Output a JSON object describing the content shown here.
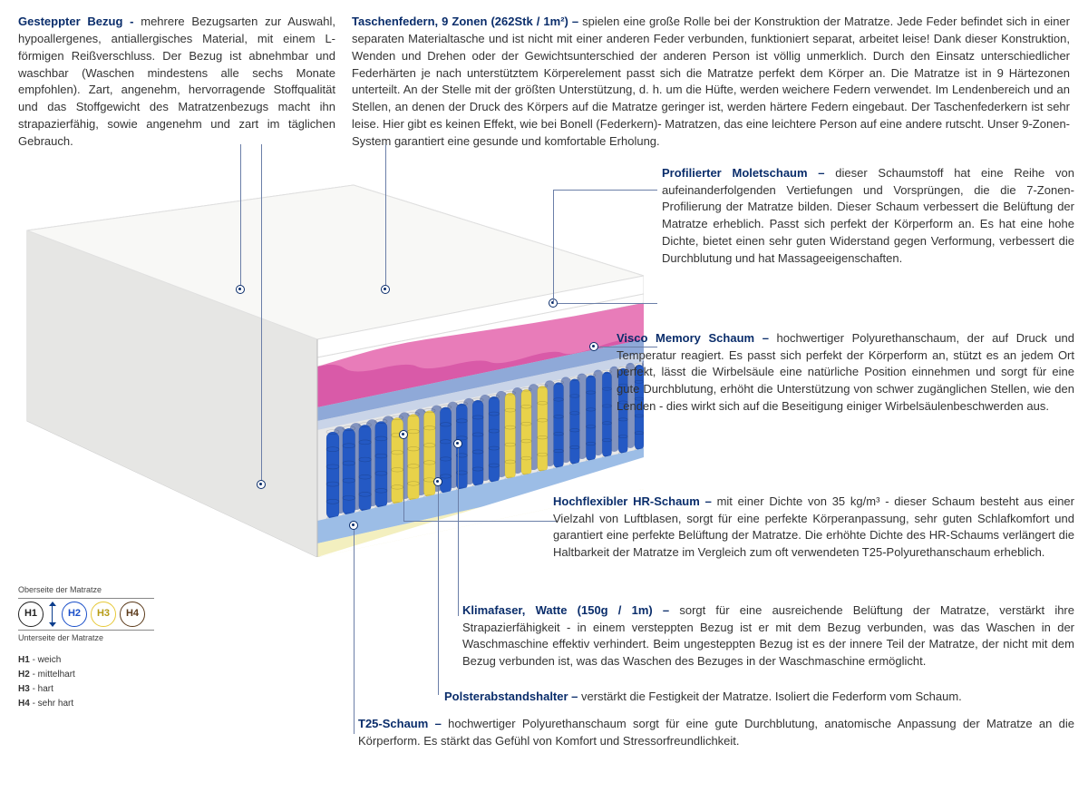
{
  "top": {
    "left": {
      "title": "Gesteppter Bezug - ",
      "body": "mehrere Bezugsarten zur Auswahl, hypoallergenes, antiallergisches Material, mit einem L-förmigen Reißverschluss. Der Bezug ist abnehmbar und waschbar (Waschen mindestens alle sechs Monate empfohlen). Zart, angenehm, hervorragende Stoffqualität und das Stoffgewicht des Matratzenbezugs macht ihn strapazierfähig, sowie angenehm und zart im täglichen Gebrauch."
    },
    "right": {
      "title": "Taschenfedern, 9 Zonen (262Stk / 1m²) – ",
      "body": "spielen eine große Rolle bei der Konstruktion der Matratze. Jede Feder befindet sich in einer separaten Materialtasche und ist nicht mit einer anderen Feder verbunden, funktioniert separat, arbeitet leise! Dank dieser Konstruktion, Wenden und Drehen oder der Gewichtsunterschied der anderen Person ist völlig unmerklich. Durch den Einsatz unterschiedlicher Federhärten je nach unterstütztem Körperelement passt sich die Matratze perfekt dem Körper an. Die Matratze ist in 9 Härtezonen unterteilt. An der Stelle mit der größten Unterstützung, d. h. um die Hüfte, werden weichere Federn verwendet. Im Lendenbereich und an Stellen, an denen der Druck des Körpers auf die Matratze geringer ist, werden härtere Federn eingebaut. Der Taschenfederkern ist sehr leise. Hier gibt es keinen Effekt, wie bei Bonell (Federkern)- Matratzen, das eine leichtere Person auf eine andere rutscht. Unser 9-Zonen-System garantiert eine gesunde und komfortable Erholung."
    }
  },
  "right_blocks": {
    "r1": {
      "title": "Profilierter Moletschaum – ",
      "body": "dieser Schaumstoff hat eine Reihe von aufeinanderfolgenden Vertiefungen und Vorsprüngen, die die 7-Zonen-Profilierung der Matratze bilden. Dieser Schaum verbessert die Belüftung der Matratze erheblich. Passt sich perfekt der Körperform an. Es hat eine hohe Dichte, bietet einen sehr guten Widerstand gegen Verformung, verbessert die Durchblutung und hat Massageeigenschaften."
    },
    "r2": {
      "title": "Visco Memory Schaum – ",
      "body": "hochwertiger Polyurethanschaum, der auf Druck und Temperatur reagiert. Es passt sich perfekt der Körperform an, stützt es an jedem Ort perfekt, lässt die Wirbelsäule eine natürliche Position einnehmen und sorgt für eine gute Durchblutung, erhöht die Unterstützung von schwer zugänglichen Stellen, wie den Lenden - dies wirkt sich auf die Beseitigung einiger Wirbelsäulenbeschwerden aus."
    }
  },
  "bottom_blocks": {
    "b1": {
      "title": "Hochflexibler HR-Schaum – ",
      "body": "mit einer Dichte von 35 kg/m³ - dieser Schaum besteht aus einer Vielzahl von Luftblasen, sorgt für eine perfekte Körperanpassung, sehr guten Schlafkomfort und garantiert eine perfekte Belüftung der Matratze. Die erhöhte Dichte des HR-Schaums verlängert die Haltbarkeit der Matratze im Vergleich zum oft verwendeten T25-Polyurethanschaum erheblich."
    },
    "b2": {
      "title": "Klimafaser, Watte (150g / 1m) – ",
      "body": "sorgt für eine ausreichende Belüftung der Matratze, verstärkt ihre Strapazierfähigkeit - in einem versteppten Bezug ist er mit dem Bezug verbunden, was das Waschen in der Waschmaschine effektiv verhindert. Beim ungesteppten Bezug ist es der innere Teil der Matratze, der nicht mit dem Bezug verbunden ist, was das Waschen des Bezuges in der Waschmaschine ermöglicht."
    },
    "b3": {
      "title": "Polsterabstandshalter – ",
      "body": "verstärkt die Festigkeit der Matratze. Isoliert die Federform vom Schaum."
    },
    "b4": {
      "title": "T25-Schaum – ",
      "body": "hochwertiger Polyurethanschaum sorgt für eine gute Durchblutung, anatomische Anpassung der Matratze an die Körperform. Es stärkt das Gefühl von Komfort und Stressorfreundlichkeit."
    }
  },
  "hardness": {
    "top_label": "Oberseite der Matratze",
    "bottom_label": "Unterseite der Matratze",
    "circles": [
      {
        "label": "H1",
        "border": "#222",
        "text": "#222"
      },
      {
        "label": "H2",
        "border": "#1a4fc9",
        "text": "#1a4fc9"
      },
      {
        "label": "H3",
        "border": "#e7c938",
        "text": "#b59a14"
      },
      {
        "label": "H4",
        "border": "#5b3a1a",
        "text": "#5b3a1a"
      }
    ],
    "legend": [
      {
        "k": "H1",
        "v": " - weich"
      },
      {
        "k": "H2",
        "v": " - mittelhart"
      },
      {
        "k": "H3",
        "v": " - hart"
      },
      {
        "k": "H4",
        "v": " - sehr hart"
      }
    ]
  },
  "diagram": {
    "colors": {
      "cover": "#f2f2f0",
      "cover_side": "#dedede",
      "top_foam": "#ffffff",
      "profile_pink": "#d95aa8",
      "profile_pink_top": "#e87cb9",
      "visco_blue": "#8fa9d8",
      "spacer": "#c9d4e8",
      "springs": {
        "blue": "#2459c4",
        "yellow": "#e8d24a",
        "dark": "#1b3e94"
      },
      "hr_blue": "#9cbde6",
      "t25_cream": "#f3efbf",
      "outline": "#9aa4b5"
    }
  }
}
